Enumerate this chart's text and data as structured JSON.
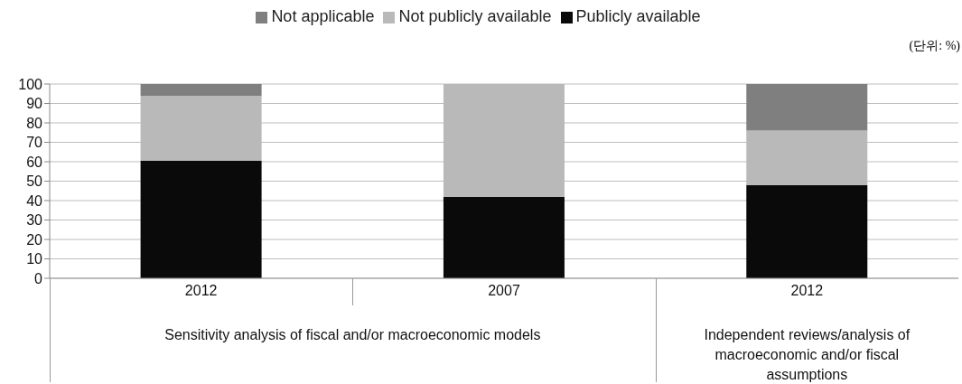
{
  "chart_data": {
    "type": "bar",
    "stacked": true,
    "categories": [
      "2012",
      "2007",
      "2012"
    ],
    "series": [
      {
        "name": "Publicly available",
        "color": "#0a0a0a",
        "values": [
          60.5,
          42,
          48
        ]
      },
      {
        "name": "Not publicly available",
        "color": "#b9b9b9",
        "values": [
          33.5,
          58,
          28
        ]
      },
      {
        "name": "Not applicable",
        "color": "#7f7f7f",
        "values": [
          6,
          0,
          24
        ]
      }
    ],
    "ylim": [
      0,
      100
    ],
    "yticks": [
      0,
      10,
      20,
      30,
      40,
      50,
      60,
      70,
      80,
      90,
      100
    ],
    "grid": "y",
    "legend": "top",
    "annotations": [
      "(단위: %)",
      "Sensitivity analysis of fiscal and/or macroeconomic models",
      "Independent reviews/analysis of macroeconomic and/or fiscal assumptions"
    ]
  }
}
